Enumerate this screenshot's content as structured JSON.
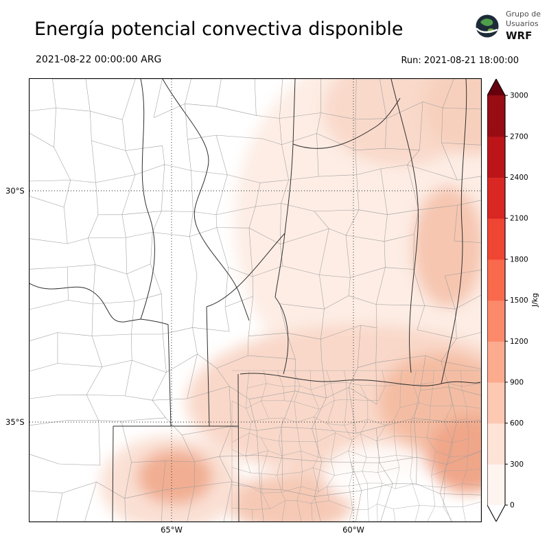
{
  "header": {
    "title": "Energía potencial convectiva disponible",
    "valid_time": "2021-08-22 00:00:00 ARG",
    "run_label": "Run: 2021-08-21 18:00:00",
    "logo": {
      "line1": "Grupo de",
      "line2": "Usuarios",
      "line3": "WRF"
    }
  },
  "map": {
    "lat_ticks": [
      {
        "label": "30°S"
      },
      {
        "label": "35°S"
      }
    ],
    "lon_ticks": [
      {
        "label": "65°W"
      },
      {
        "label": "60°W"
      }
    ]
  },
  "colorbar": {
    "unit": "J/kg",
    "levels": [
      0,
      300,
      600,
      900,
      1200,
      1500,
      1800,
      2100,
      2400,
      2700,
      3000
    ],
    "segment_colors_bottom_to_top": [
      "#fff5f0",
      "#fee3d7",
      "#fdc9b3",
      "#fcab8f",
      "#fc8a6a",
      "#f9694c",
      "#ef4533",
      "#d92723",
      "#bb151a",
      "#980c13"
    ],
    "under_color": "#ffffff",
    "over_color": "#67000d"
  },
  "chart_data": {
    "type": "heatmap",
    "title": "Energía potencial convectiva disponible",
    "units": "J/kg",
    "levels": [
      0,
      300,
      600,
      900,
      1200,
      1500,
      1800,
      2100,
      2400,
      2700,
      3000
    ],
    "lat_ticks": [
      "30°S",
      "35°S"
    ],
    "lon_ticks": [
      "65°W",
      "60°W"
    ],
    "summary": "Light CAPE shading (mostly 0–600 J/kg) over eastern Argentina (Santa Fe, Entre Ríos, eastern Córdoba, Buenos Aires and a patch over eastern La Pampa); near-zero CAPE over the western provinces."
  }
}
